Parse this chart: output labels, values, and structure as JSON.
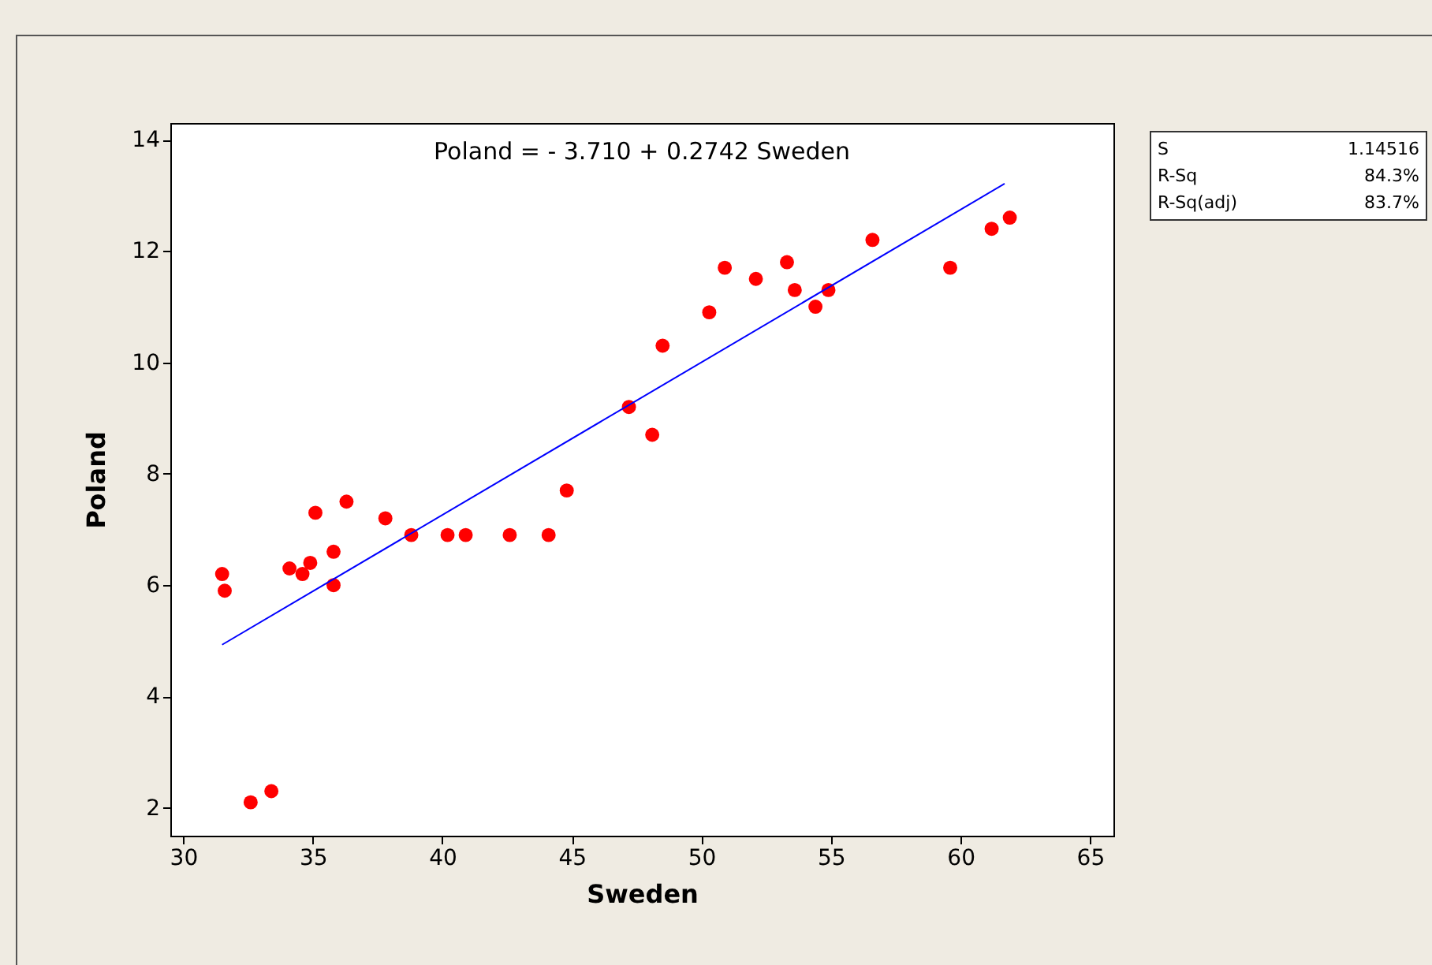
{
  "chart_data": {
    "type": "scatter",
    "title": "Poland =  - 3.710 + 0.2742 Sweden",
    "xlabel": "Sweden",
    "ylabel": "Poland",
    "xlim": [
      29.5,
      65.9
    ],
    "ylim": [
      1.5,
      14.3
    ],
    "xticks": [
      30,
      35,
      40,
      45,
      50,
      55,
      60,
      65
    ],
    "yticks": [
      2,
      4,
      6,
      8,
      10,
      12,
      14
    ],
    "grid": false,
    "marker": "circle",
    "annotations": [
      "S",
      "1.14516",
      "R-Sq",
      "84.3%",
      "R-Sq(adj)",
      "83.7%"
    ],
    "series": [
      {
        "color": "#ff0000",
        "x": [
          31.5,
          31.6,
          32.6,
          33.4,
          34.1,
          34.6,
          34.9,
          35.1,
          35.8,
          35.8,
          36.3,
          37.8,
          38.8,
          40.2,
          40.9,
          42.6,
          44.1,
          44.8,
          47.2,
          48.1,
          48.5,
          50.3,
          50.9,
          52.1,
          53.3,
          53.6,
          54.4,
          54.9,
          56.6,
          59.6,
          61.2,
          61.9
        ],
        "values": [
          6.2,
          5.9,
          2.1,
          2.3,
          6.3,
          6.2,
          6.4,
          7.3,
          6.6,
          6.0,
          7.5,
          7.2,
          6.9,
          6.9,
          6.9,
          6.9,
          6.9,
          7.7,
          9.2,
          8.7,
          10.3,
          10.9,
          11.7,
          11.5,
          11.8,
          11.3,
          11.0,
          11.3,
          12.2,
          11.7,
          12.4,
          12.6
        ]
      },
      {
        "type": "line",
        "color": "#0000ff",
        "line_style": "solid",
        "marker": "none",
        "x": [
          31.5,
          61.7
        ],
        "values": [
          4.93,
          13.21
        ]
      }
    ]
  }
}
